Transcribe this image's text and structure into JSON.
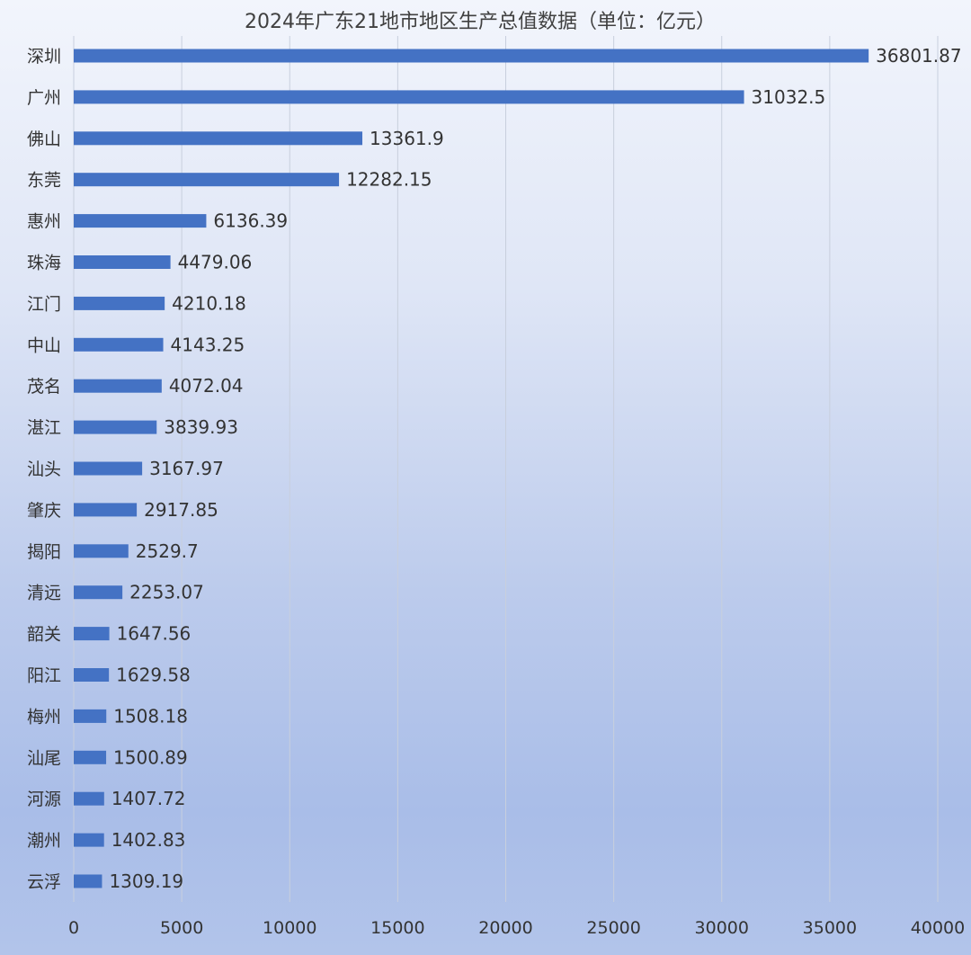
{
  "chart_data": {
    "type": "bar",
    "orientation": "horizontal",
    "title": "2024年广东21地市地区生产总值数据（单位：亿元）",
    "categories": [
      "深圳",
      "广州",
      "佛山",
      "东莞",
      "惠州",
      "珠海",
      "江门",
      "中山",
      "茂名",
      "湛江",
      "汕头",
      "肇庆",
      "揭阳",
      "清远",
      "韶关",
      "阳江",
      "梅州",
      "汕尾",
      "河源",
      "潮州",
      "云浮"
    ],
    "values": [
      36801.87,
      31032.5,
      13361.9,
      12282.15,
      6136.39,
      4479.06,
      4210.18,
      4143.25,
      4072.04,
      3839.93,
      3167.97,
      2917.85,
      2529.7,
      2253.07,
      1647.56,
      1629.58,
      1508.18,
      1500.89,
      1407.72,
      1402.83,
      1309.19
    ],
    "value_labels": [
      "36801.87",
      "31032.5",
      "13361.9",
      "12282.15",
      "6136.39",
      "4479.06",
      "4210.18",
      "4143.25",
      "4072.04",
      "3839.93",
      "3167.97",
      "2917.85",
      "2529.7",
      "2253.07",
      "1647.56",
      "1629.58",
      "1508.18",
      "1500.89",
      "1407.72",
      "1402.83",
      "1309.19"
    ],
    "x_ticks": [
      "0",
      "5000",
      "10000",
      "15000",
      "20000",
      "25000",
      "30000",
      "35000",
      "40000"
    ],
    "xlim": [
      0,
      40000
    ],
    "xlabel": "",
    "ylabel": "",
    "grid": "vertical",
    "legend": "none",
    "bar_color": "#4472c4"
  }
}
